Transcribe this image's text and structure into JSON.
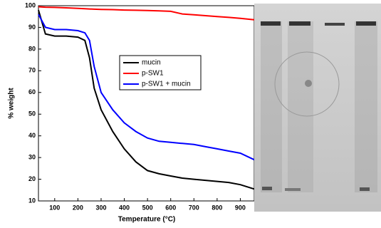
{
  "chart_data": {
    "type": "line",
    "x_label": "Temperature (°C)",
    "y_label": "% weight",
    "x": [
      30,
      60,
      100,
      150,
      200,
      230,
      250,
      270,
      300,
      350,
      400,
      450,
      500,
      550,
      600,
      650,
      700,
      750,
      800,
      850,
      900,
      960
    ],
    "series": [
      {
        "name": "mucin",
        "color": "#000000",
        "values": [
          98,
          87,
          86,
          86,
          85.5,
          84,
          76,
          62,
          52,
          42,
          34,
          28,
          24,
          22.5,
          21.5,
          20.5,
          20,
          19.5,
          19,
          18.5,
          17.5,
          15.5
        ]
      },
      {
        "name": "p-SW1",
        "color": "#ff0000",
        "values": [
          99.5,
          99.3,
          99.2,
          99,
          98.8,
          98.6,
          98.5,
          98.4,
          98.3,
          98.2,
          98,
          97.9,
          97.8,
          97.6,
          97.4,
          96.2,
          95.8,
          95.4,
          95,
          94.6,
          94.2,
          93.5
        ]
      },
      {
        "name": "p-SW1 + mucin",
        "color": "#0000ff",
        "values": [
          96,
          90,
          89,
          89,
          88.5,
          87.5,
          84,
          72,
          60,
          52,
          46,
          42,
          39,
          37.5,
          37,
          36.5,
          36,
          35,
          34,
          33,
          32,
          29
        ]
      }
    ],
    "xlim": [
      30,
      960
    ],
    "xticks": [
      100,
      200,
      300,
      400,
      500,
      600,
      700,
      800,
      900
    ],
    "ylim": [
      10,
      100
    ],
    "yticks": [
      10,
      20,
      30,
      40,
      50,
      60,
      70,
      80,
      90,
      100
    ]
  }
}
